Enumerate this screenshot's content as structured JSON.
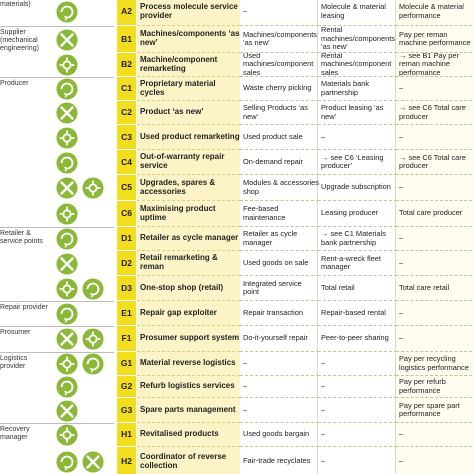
{
  "table": {
    "rows": [
      {
        "actor": "materials)",
        "code": "A2",
        "strategy": "Process molecule service provider",
        "product": "–",
        "use": "Molecule & material leasing",
        "result": "Molecule & material performance"
      },
      {
        "actor": "Supplier (mechanical engineering)",
        "code": "B1",
        "strategy": "Machines/components ‘as new’",
        "product": "Machines/components ‘as new’",
        "use": "Rental machines/components ‘as new’",
        "result": "Pay per reman machine performance"
      },
      {
        "code": "B2",
        "strategy": "Machine/component remarketing",
        "product": "Used machines/component sales",
        "use": "Rental machines/component sales",
        "result": "→ see B1 Pay per reman machine performance"
      },
      {
        "actor": "Producer",
        "code": "C1",
        "strategy": "Proprietary material cycles",
        "product": "Waste cherry picking",
        "use": "Materials bank partnership",
        "result": "–"
      },
      {
        "code": "C2",
        "strategy": "Product ‘as new’",
        "product": "Selling Products ‘as new’",
        "use": "Product leasing ‘as new’",
        "result": "→ see C6 Total care producer"
      },
      {
        "code": "C3",
        "strategy": "Used product remarketing",
        "product": "Used product sale",
        "use": "–",
        "result": "–"
      },
      {
        "code": "C4",
        "strategy": "Out-of-warranty repair service",
        "product": "On-demand repair",
        "use": "→ see C6 ‘Leasing producer’",
        "result": "→ see C6 Total care producer"
      },
      {
        "code": "C5",
        "strategy": "Upgrades, spares & accessories",
        "product": "Modules & accessories shop",
        "use": "Upgrade subscription",
        "result": "–"
      },
      {
        "code": "C6",
        "strategy": "Maximising product uptime",
        "product": "Fee-based maintenance",
        "use": "Leasing producer",
        "result": "Total care producer"
      },
      {
        "actor": "Retailer & service points",
        "code": "D1",
        "strategy": "Retailer as cycle manager",
        "product": "Retailer as cycle manager",
        "use": "→ see C1 Materials bank partnership",
        "result": "–"
      },
      {
        "code": "D2",
        "strategy": "Retail remarketing & reman",
        "product": "Used goods on sale",
        "use": "Rent-a-wreck fleet manager",
        "result": "–"
      },
      {
        "code": "D3",
        "strategy": "One-stop shop (retail)",
        "product": "Integrated service point",
        "use": "Total retail",
        "result": "Total care retail"
      },
      {
        "actor": "Repair provider",
        "code": "E1",
        "strategy": "Repair gap exploiter",
        "product": "Repair transaction",
        "use": "Repair-based rental",
        "result": "–"
      },
      {
        "actor": "Prosumer",
        "code": "F1",
        "strategy": "Prosumer support system",
        "product": "Do-it-yourself repair",
        "use": "Peer-to-peer sharing",
        "result": "–"
      },
      {
        "actor": "Logistics provider",
        "code": "G1",
        "strategy": "Material reverse logistics",
        "product": "–",
        "use": "–",
        "result": "Pay per recycling logistics performance"
      },
      {
        "code": "G2",
        "strategy": "Refurb logistics services",
        "product": "–",
        "use": "–",
        "result": "Pay per refurb performance"
      },
      {
        "code": "G3",
        "strategy": "Spare parts management",
        "product": "–",
        "use": "–",
        "result": "Pay per spare part performance"
      },
      {
        "actor": "Recovery manager",
        "code": "H1",
        "strategy": "Revitalised products",
        "product": "Used goods bargain",
        "use": "–",
        "result": "–"
      },
      {
        "code": "H2",
        "strategy": "Coordinator of reverse collection",
        "product": "Fair-trade recyclates",
        "use": "–",
        "result": "–"
      }
    ]
  }
}
